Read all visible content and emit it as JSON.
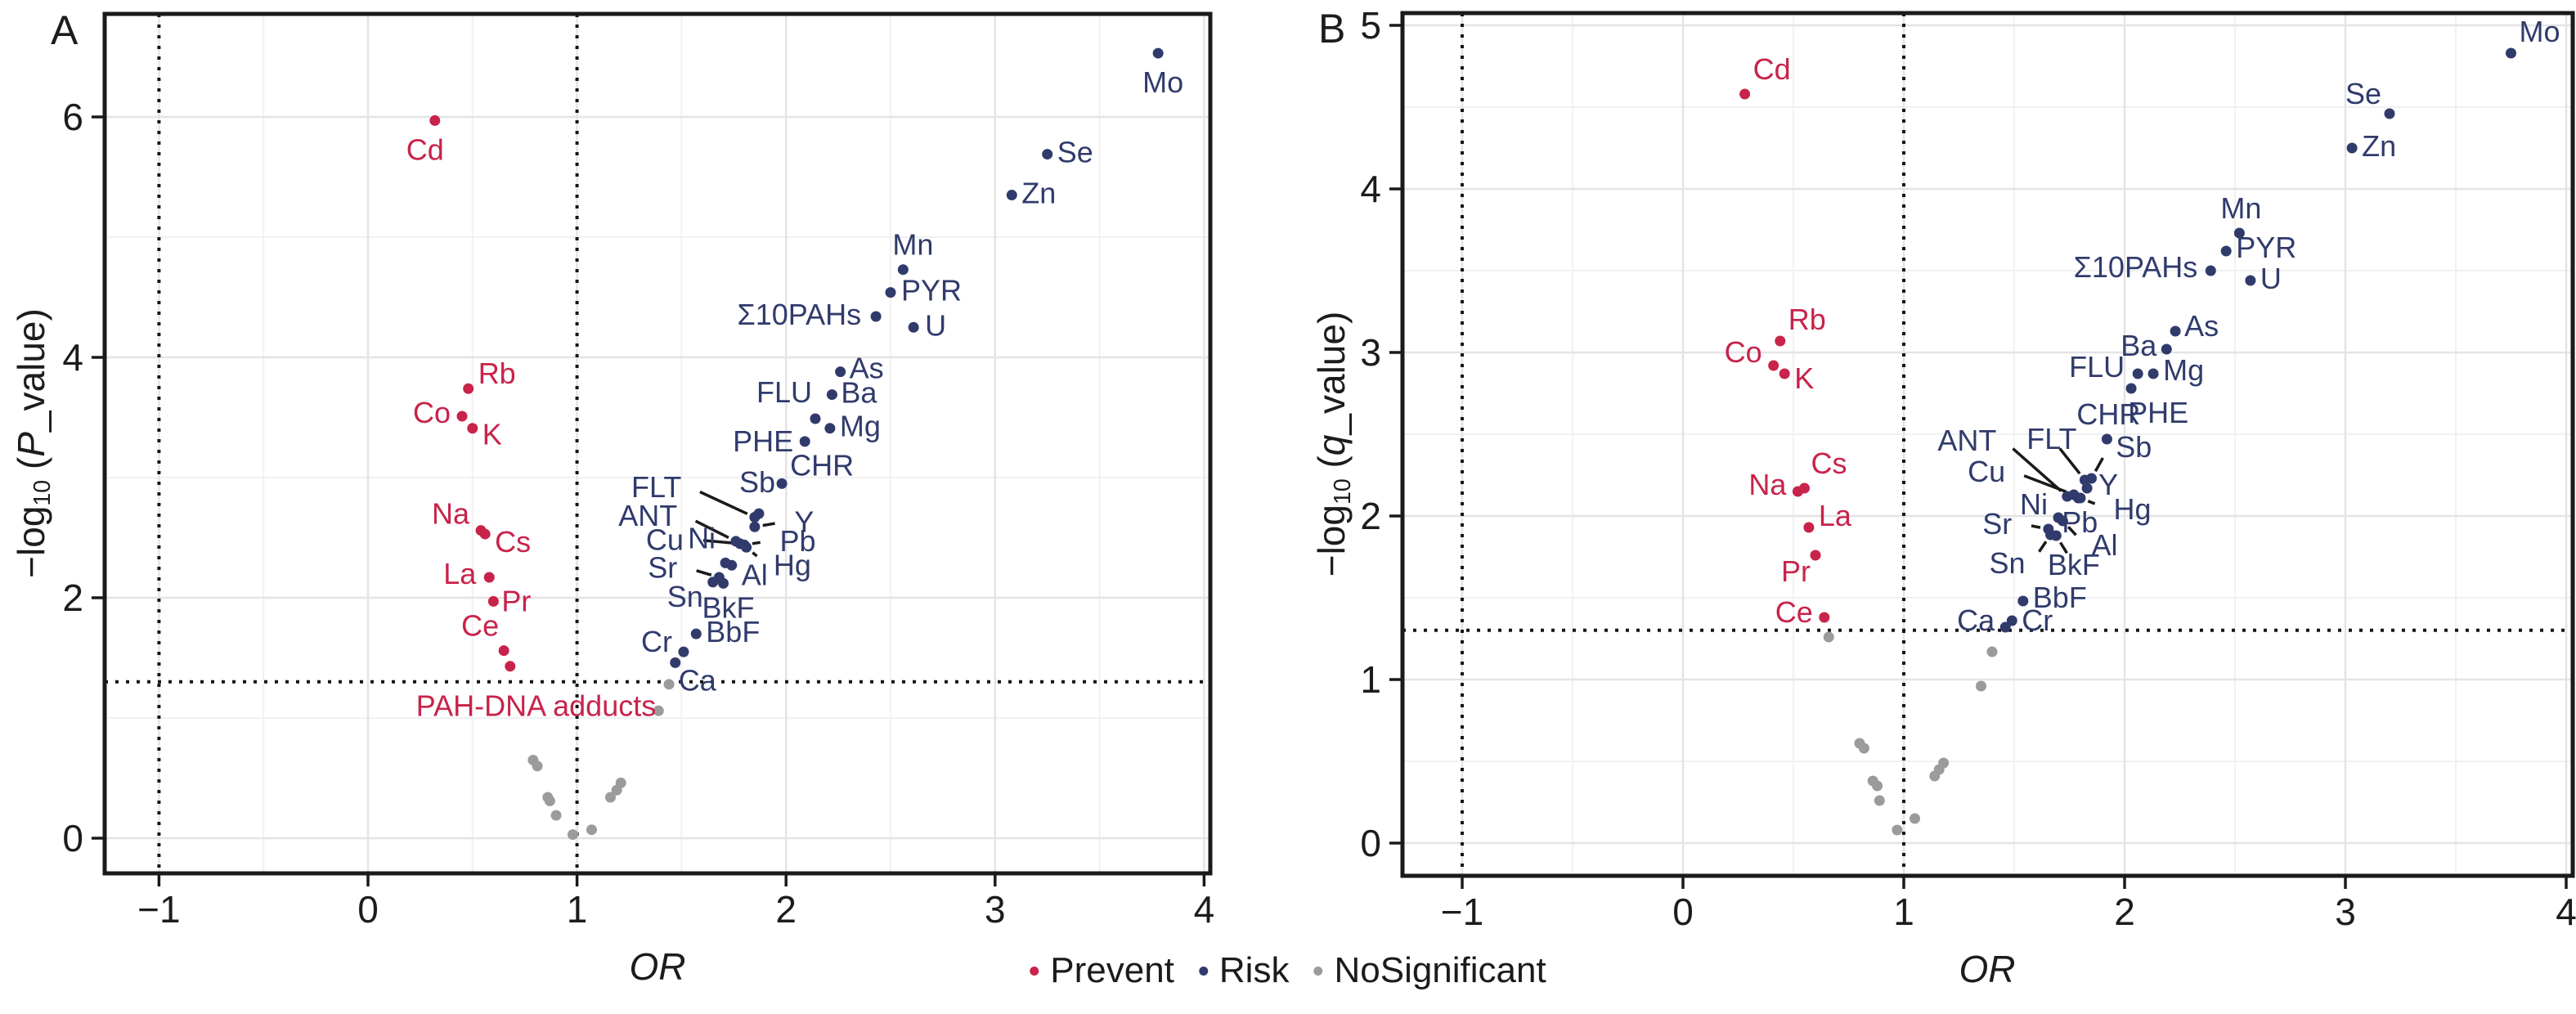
{
  "figure": {
    "panel_a_letter": "A",
    "panel_b_letter": "B",
    "colors": {
      "prevent": "#C8234A",
      "risk": "#303B6C",
      "nosignificant": "#9B9B9B",
      "grid_major": "#E4E4E4",
      "grid_minor": "#F1F1F1",
      "axis": "#1A1A1A"
    },
    "legend": {
      "items": [
        {
          "label": "Prevent",
          "color": "#C8234A"
        },
        {
          "label": "Risk",
          "color": "#303B6C"
        },
        {
          "label": "NoSignificant",
          "color": "#9B9B9B"
        }
      ]
    }
  },
  "chart_data": [
    {
      "type": "scatter",
      "panel": "A",
      "title": "A",
      "xlabel": "OR",
      "ylabel": {
        "pre": "−log",
        "sub": "10",
        "mid": " (",
        "variable": "P",
        "tail": "_value)"
      },
      "xlim": [
        -1.26,
        4.03
      ],
      "ylim": [
        -0.29,
        6.86
      ],
      "x_ticks": [
        -1,
        0,
        1,
        2,
        3,
        4
      ],
      "x_tick_labels": [
        "−1",
        "0",
        "1",
        "2",
        "3",
        "4"
      ],
      "y_ticks": [
        0,
        2,
        4,
        6
      ],
      "y_tick_labels": [
        "0",
        "2",
        "4",
        "6"
      ],
      "x_minor": [
        -0.5,
        0.5,
        1.5,
        2.5,
        3.5
      ],
      "y_minor": [
        1,
        3,
        5
      ],
      "hline": 1.301,
      "vlines": [
        -1,
        1
      ],
      "grid": true,
      "legend_position": "bottom",
      "series": [
        {
          "name": "Prevent",
          "color": "#C8234A",
          "points": [
            {
              "label": "Cd",
              "x": 0.32,
              "y": 5.97,
              "dx": -12,
              "dy": 48,
              "anchor": "middle"
            },
            {
              "label": "Rb",
              "x": 0.48,
              "y": 3.74,
              "dx": 12,
              "dy": -6
            },
            {
              "label": "Co",
              "x": 0.45,
              "y": 3.51,
              "dx": -14,
              "dy": 8,
              "anchor": "end"
            },
            {
              "label": "K",
              "x": 0.5,
              "y": 3.41,
              "dx": 12,
              "dy": 20
            },
            {
              "label": "Na",
              "x": 0.54,
              "y": 2.56,
              "dx": -14,
              "dy": -8,
              "anchor": "end"
            },
            {
              "label": "Cs",
              "x": 0.56,
              "y": 2.53,
              "dx": 12,
              "dy": 22
            },
            {
              "label": "La",
              "x": 0.58,
              "y": 2.17,
              "dx": -16,
              "dy": 8,
              "anchor": "end"
            },
            {
              "label": "Pr",
              "x": 0.6,
              "y": 1.97,
              "dx": 10,
              "dy": 12
            },
            {
              "label": "Ce",
              "x": 0.65,
              "y": 1.56,
              "dx": -6,
              "dy": -18,
              "anchor": "end"
            },
            {
              "label": "PAH-DNA adducts",
              "x": 0.68,
              "y": 1.43,
              "lx": 0.23,
              "ly": 1.1,
              "anchor": "start"
            }
          ]
        },
        {
          "name": "Risk",
          "color": "#303B6C",
          "points": [
            {
              "label": "Mo",
              "x": 3.78,
              "y": 6.53,
              "dx": 6,
              "dy": 48,
              "anchor": "middle"
            },
            {
              "label": "Se",
              "x": 3.25,
              "y": 5.69,
              "dx": 12,
              "dy": 10
            },
            {
              "label": "Zn",
              "x": 3.08,
              "y": 5.35,
              "dx": 12,
              "dy": 10
            },
            {
              "label": "Mn",
              "x": 2.56,
              "y": 4.73,
              "dx": 0,
              "dy": -18,
              "anchor": "middle"
            },
            {
              "label": "PYR",
              "x": 2.5,
              "y": 4.54,
              "dx": 13,
              "dy": 10
            },
            {
              "label": "Σ10PAHs",
              "x": 2.43,
              "y": 4.34,
              "dx": -18,
              "dy": 10,
              "anchor": "end"
            },
            {
              "label": "U",
              "x": 2.61,
              "y": 4.25,
              "dx": 14,
              "dy": 10
            },
            {
              "label": "As",
              "x": 2.26,
              "y": 3.88,
              "dx": 11,
              "dy": 8
            },
            {
              "label": "Ba",
              "x": 2.22,
              "y": 3.69,
              "dx": 11,
              "dy": 10
            },
            {
              "label": "FLU",
              "x": 2.14,
              "y": 3.49,
              "dx": -4,
              "dy": -20,
              "anchor": "end"
            },
            {
              "label": "Mg",
              "x": 2.21,
              "y": 3.41,
              "dx": 12,
              "dy": 10
            },
            {
              "label": "PHE",
              "x": 2.09,
              "y": 3.3,
              "dx": -14,
              "dy": 12,
              "anchor": "end"
            },
            {
              "label": "CHR",
              "x": 1.98,
              "y": 2.95,
              "dx": 10,
              "dy": -10
            },
            {
              "label": "Sb",
              "x": 1.87,
              "y": 2.7,
              "dx": -2,
              "dy": -26,
              "anchor": "middle"
            },
            {
              "label": "FLT",
              "x": 1.85,
              "y": 2.67,
              "lx": 1.5,
              "ly": 2.92,
              "anchor": "end",
              "leader": true
            },
            {
              "label": "Y",
              "x": 1.85,
              "y": 2.59,
              "lx": 2.04,
              "ly": 2.63,
              "anchor": "start",
              "leader": true
            },
            {
              "label": "ANT",
              "x": 1.76,
              "y": 2.47,
              "lx": 1.48,
              "ly": 2.68,
              "anchor": "end",
              "leader": true
            },
            {
              "label": "Cu",
              "x": 1.78,
              "y": 2.45,
              "lx": 1.51,
              "ly": 2.48,
              "anchor": "end",
              "leader": true
            },
            {
              "label": "Pb",
              "x": 1.8,
              "y": 2.44,
              "lx": 1.97,
              "ly": 2.47,
              "anchor": "start",
              "leader": true
            },
            {
              "label": "Hg",
              "x": 1.81,
              "y": 2.42,
              "lx": 1.94,
              "ly": 2.27,
              "anchor": "start",
              "leader": true
            },
            {
              "label": "Ni",
              "x": 1.71,
              "y": 2.29,
              "dx": -12,
              "dy": -18,
              "anchor": "end"
            },
            {
              "label": "Al",
              "x": 1.74,
              "y": 2.27,
              "dx": 12,
              "dy": 24
            },
            {
              "label": "Sr",
              "x": 1.68,
              "y": 2.17,
              "lx": 1.48,
              "ly": 2.25,
              "anchor": "end",
              "leader": true
            },
            {
              "label": "Sn",
              "x": 1.65,
              "y": 2.13,
              "dx": -12,
              "dy": 30,
              "anchor": "end"
            },
            {
              "label": "BkF",
              "x": 1.7,
              "y": 2.12,
              "dx": 6,
              "dy": 42,
              "anchor": "middle"
            },
            {
              "label": "BbF",
              "x": 1.57,
              "y": 1.7,
              "dx": 12,
              "dy": 10
            },
            {
              "label": "Cr",
              "x": 1.51,
              "y": 1.55,
              "dx": -14,
              "dy": 0,
              "anchor": "end"
            },
            {
              "label": "Ca",
              "x": 1.47,
              "y": 1.46,
              "dx": 4,
              "dy": 34
            }
          ]
        },
        {
          "name": "NoSignificant",
          "color": "#9B9B9B",
          "points": [
            {
              "x": 0.79,
              "y": 0.65
            },
            {
              "x": 0.81,
              "y": 0.6
            },
            {
              "x": 0.86,
              "y": 0.34
            },
            {
              "x": 0.87,
              "y": 0.31
            },
            {
              "x": 0.9,
              "y": 0.19
            },
            {
              "x": 0.98,
              "y": 0.03
            },
            {
              "x": 1.07,
              "y": 0.07
            },
            {
              "x": 1.16,
              "y": 0.34
            },
            {
              "x": 1.19,
              "y": 0.4
            },
            {
              "x": 1.21,
              "y": 0.46
            },
            {
              "x": 1.39,
              "y": 1.06
            },
            {
              "x": 1.44,
              "y": 1.28
            }
          ]
        }
      ]
    },
    {
      "type": "scatter",
      "panel": "B",
      "title": "B",
      "xlabel": "OR",
      "ylabel": {
        "pre": "−log",
        "sub": "10",
        "mid": " (",
        "variable": "q",
        "tail": "_value)"
      },
      "xlim": [
        -1.27,
        4.03
      ],
      "ylim": [
        -0.2,
        5.08
      ],
      "x_ticks": [
        -1,
        0,
        1,
        2,
        3,
        4
      ],
      "x_tick_labels": [
        "−1",
        "0",
        "1",
        "2",
        "3",
        "4"
      ],
      "y_ticks": [
        0,
        1,
        2,
        3,
        4,
        5
      ],
      "y_tick_labels": [
        "0",
        "1",
        "2",
        "3",
        "4",
        "5"
      ],
      "x_minor": [
        -0.5,
        0.5,
        1.5,
        2.5,
        3.5
      ],
      "y_minor": [
        0.5,
        1.5,
        2.5,
        3.5,
        4.5
      ],
      "hline": 1.301,
      "vlines": [
        -1,
        1
      ],
      "grid": true,
      "legend_position": "bottom",
      "series": [
        {
          "name": "Prevent",
          "color": "#C8234A",
          "points": [
            {
              "label": "Cd",
              "x": 0.28,
              "y": 4.58,
              "dx": 10,
              "dy": -18
            },
            {
              "label": "Rb",
              "x": 0.44,
              "y": 3.07,
              "dx": 10,
              "dy": -14
            },
            {
              "label": "Co",
              "x": 0.41,
              "y": 2.92,
              "dx": -14,
              "dy": -4,
              "anchor": "end"
            },
            {
              "label": "K",
              "x": 0.46,
              "y": 2.87,
              "dx": 12,
              "dy": 18
            },
            {
              "label": "Cs",
              "x": 0.55,
              "y": 2.17,
              "dx": 8,
              "dy": -18
            },
            {
              "label": "Na",
              "x": 0.52,
              "y": 2.15,
              "dx": -14,
              "dy": 4,
              "anchor": "end"
            },
            {
              "label": "La",
              "x": 0.57,
              "y": 1.93,
              "dx": 12,
              "dy": -2
            },
            {
              "label": "Pr",
              "x": 0.6,
              "y": 1.76,
              "dx": -6,
              "dy": 32,
              "anchor": "end"
            },
            {
              "label": "Ce",
              "x": 0.64,
              "y": 1.38,
              "dx": -14,
              "dy": 6,
              "anchor": "end"
            }
          ]
        },
        {
          "name": "Risk",
          "color": "#303B6C",
          "points": [
            {
              "label": "Mo",
              "x": 3.75,
              "y": 4.83,
              "dx": 10,
              "dy": -14
            },
            {
              "label": "Se",
              "x": 3.2,
              "y": 4.46,
              "dx": -10,
              "dy": -12,
              "anchor": "end"
            },
            {
              "label": "Zn",
              "x": 3.03,
              "y": 4.25,
              "dx": 12,
              "dy": 10
            },
            {
              "label": "Mn",
              "x": 2.52,
              "y": 3.73,
              "dx": 2,
              "dy": -18,
              "anchor": "middle"
            },
            {
              "label": "PYR",
              "x": 2.46,
              "y": 3.62,
              "dx": 12,
              "dy": 8
            },
            {
              "label": "Σ10PAHs",
              "x": 2.39,
              "y": 3.5,
              "dx": -16,
              "dy": 8,
              "anchor": "end"
            },
            {
              "label": "U",
              "x": 2.57,
              "y": 3.44,
              "dx": 12,
              "dy": 10
            },
            {
              "label": "As",
              "x": 2.23,
              "y": 3.13,
              "dx": 11,
              "dy": 6
            },
            {
              "label": "Ba",
              "x": 2.19,
              "y": 3.02,
              "dx": -12,
              "dy": 8,
              "anchor": "end"
            },
            {
              "label": "FLU",
              "x": 2.06,
              "y": 2.87,
              "dx": -16,
              "dy": 4,
              "anchor": "end"
            },
            {
              "label": "Mg",
              "x": 2.13,
              "y": 2.87,
              "dx": 12,
              "dy": 8
            },
            {
              "label": "PHE",
              "x": 2.03,
              "y": 2.78,
              "dx": -4,
              "dy": 42
            },
            {
              "label": "CHR",
              "x": 1.92,
              "y": 2.47,
              "dx": 2,
              "dy": -18,
              "anchor": "middle"
            },
            {
              "label": "Sb",
              "x": 1.85,
              "y": 2.23,
              "lx": 1.96,
              "ly": 2.42,
              "anchor": "start",
              "leader": true
            },
            {
              "label": "FLT",
              "x": 1.82,
              "y": 2.22,
              "lx": 1.67,
              "ly": 2.47,
              "anchor": "middle",
              "leader": true
            },
            {
              "label": "Y",
              "x": 1.83,
              "y": 2.17,
              "dx": 14,
              "dy": 8
            },
            {
              "label": "ANT",
              "x": 1.74,
              "y": 2.12,
              "lx": 1.42,
              "ly": 2.46,
              "anchor": "end",
              "leader": true
            },
            {
              "label": "Cu",
              "x": 1.77,
              "y": 2.13,
              "lx": 1.46,
              "ly": 2.27,
              "anchor": "end",
              "leader": true
            },
            {
              "label": "Pb",
              "x": 1.79,
              "y": 2.11,
              "dx": 2,
              "dy": 42,
              "anchor": "middle"
            },
            {
              "label": "Hg",
              "x": 1.8,
              "y": 2.11,
              "lx": 1.95,
              "ly": 2.04,
              "anchor": "start",
              "leader": true
            },
            {
              "label": "Ni",
              "x": 1.7,
              "y": 1.99,
              "dx": -13,
              "dy": -4,
              "anchor": "end"
            },
            {
              "label": "Al",
              "x": 1.72,
              "y": 1.97,
              "lx": 1.85,
              "ly": 1.82,
              "anchor": "start",
              "leader": true
            },
            {
              "label": "Sr",
              "x": 1.655,
              "y": 1.92,
              "lx": 1.49,
              "ly": 1.95,
              "anchor": "end",
              "leader": true
            },
            {
              "label": "Sn",
              "x": 1.665,
              "y": 1.885,
              "lx": 1.55,
              "ly": 1.71,
              "anchor": "end",
              "leader": true
            },
            {
              "label": "BkF",
              "x": 1.69,
              "y": 1.88,
              "lx": 1.77,
              "ly": 1.7,
              "anchor": "middle",
              "leader": true
            },
            {
              "label": "BbF",
              "x": 1.54,
              "y": 1.48,
              "dx": 12,
              "dy": 8
            },
            {
              "label": "Cr",
              "x": 1.49,
              "y": 1.36,
              "dx": 12,
              "dy": 12
            },
            {
              "label": "Ca",
              "x": 1.46,
              "y": 1.32,
              "dx": -13,
              "dy": 4,
              "anchor": "end"
            }
          ]
        },
        {
          "name": "NoSignificant",
          "color": "#9B9B9B",
          "points": [
            {
              "x": 0.8,
              "y": 0.61
            },
            {
              "x": 0.82,
              "y": 0.58
            },
            {
              "x": 0.86,
              "y": 0.38
            },
            {
              "x": 0.88,
              "y": 0.35
            },
            {
              "x": 0.89,
              "y": 0.26
            },
            {
              "x": 0.97,
              "y": 0.08
            },
            {
              "x": 1.05,
              "y": 0.15
            },
            {
              "x": 1.14,
              "y": 0.41
            },
            {
              "x": 1.16,
              "y": 0.45
            },
            {
              "x": 1.18,
              "y": 0.49
            },
            {
              "x": 1.35,
              "y": 0.96
            },
            {
              "x": 1.4,
              "y": 1.17
            },
            {
              "x": 0.66,
              "y": 1.26
            }
          ]
        }
      ]
    }
  ]
}
